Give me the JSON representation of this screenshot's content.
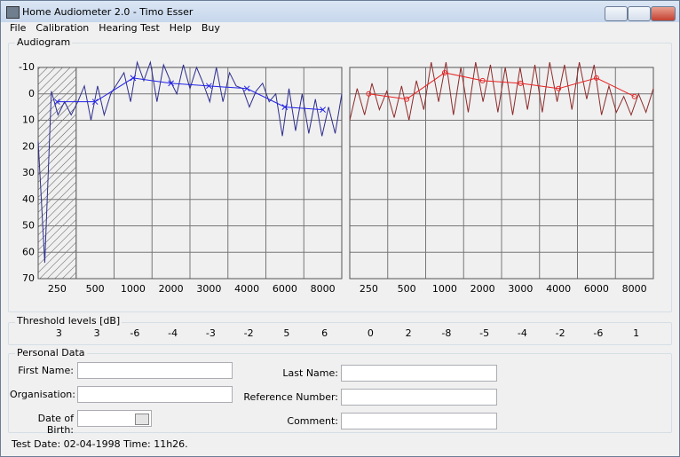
{
  "window": {
    "title": "Home Audiometer 2.0 - Timo Esser"
  },
  "menu": [
    "File",
    "Calibration",
    "Hearing Test",
    "Help",
    "Buy"
  ],
  "audiogram": {
    "title": "Audiogram",
    "ylim": [
      -10,
      70
    ],
    "yticks": [
      -10,
      0,
      10,
      20,
      30,
      40,
      50,
      60,
      70
    ],
    "categories": [
      "250",
      "500",
      "1000",
      "2000",
      "3000",
      "4000",
      "6000",
      "8000"
    ],
    "charts": [
      {
        "type": "line",
        "hatched": true,
        "trace_color": "#2e2e8e",
        "color": "#2323e6",
        "trace": [
          18,
          64,
          -1,
          8,
          3,
          8,
          3,
          -3,
          10,
          -3,
          8,
          0,
          -4,
          -8,
          3,
          -12,
          -5,
          -12,
          3,
          -11,
          -5,
          0,
          -11,
          -2,
          -10,
          -4,
          3,
          -10,
          3,
          -8,
          -3,
          -2,
          5,
          -1,
          -4,
          3,
          0,
          16,
          -2,
          14,
          0,
          15,
          2,
          16,
          5,
          15,
          0
        ],
        "thresholds": [
          3,
          3,
          -6,
          -4,
          -3,
          -2,
          5,
          6
        ]
      },
      {
        "type": "line",
        "hatched": false,
        "trace_color": "#8e2a2a",
        "color": "#e62323",
        "trace": [
          10,
          -2,
          8,
          -4,
          6,
          -1,
          9,
          -3,
          10,
          -5,
          6,
          -12,
          3,
          -12,
          8,
          -10,
          7,
          -12,
          3,
          -11,
          7,
          -10,
          8,
          -10,
          6,
          -11,
          7,
          -12,
          3,
          -11,
          6,
          -12,
          2,
          -11,
          8,
          -3,
          7,
          1,
          8,
          0,
          7,
          -2
        ],
        "thresholds": [
          0,
          2,
          -8,
          -5,
          -4,
          -2,
          -6,
          1
        ]
      }
    ]
  },
  "threshold_title": "Threshold levels [dB]",
  "personal": {
    "title": "Personal Data",
    "left": [
      "First Name:",
      "Organisation:",
      "Date of Birth:"
    ],
    "right": [
      "Last Name:",
      "Reference Number:",
      "Comment:"
    ]
  },
  "status": "Test Date: 02-04-1998 Time: 11h26."
}
